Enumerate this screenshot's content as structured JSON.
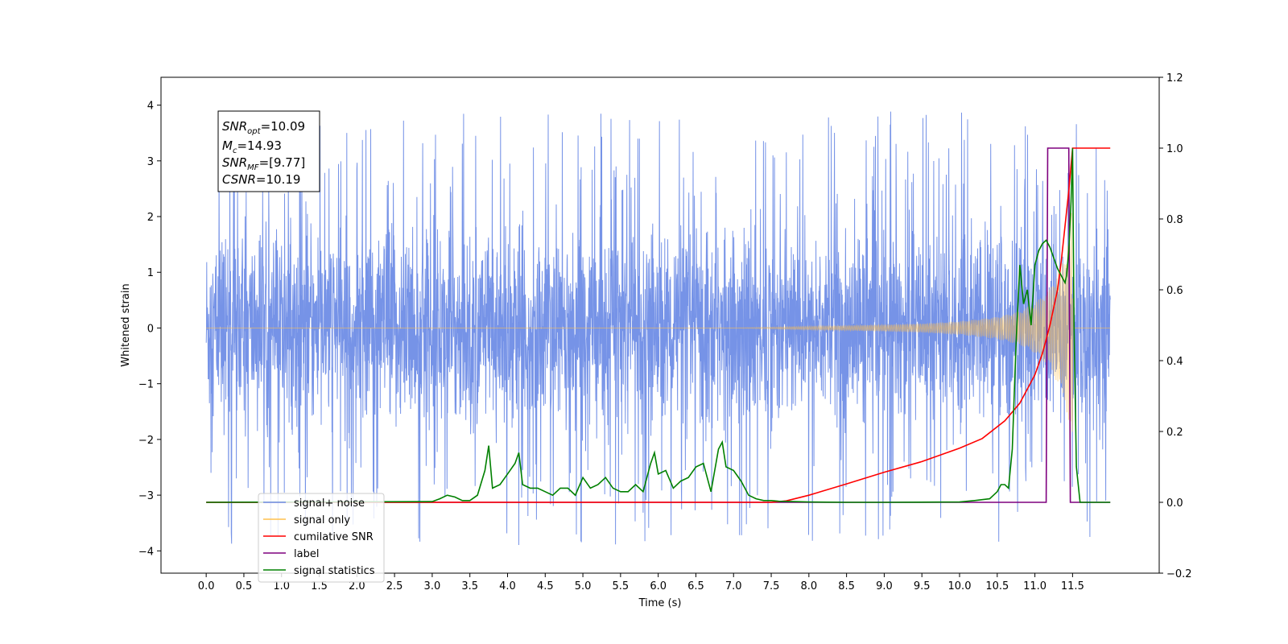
{
  "chart_data": {
    "type": "line",
    "xlabel": "Time (s)",
    "ylabel": "Whitened strain",
    "xlim": [
      -0.6,
      12.65
    ],
    "ylim": [
      -4.4,
      4.5
    ],
    "ylim_right": [
      -0.2,
      1.2
    ],
    "x_ticks": [
      0.0,
      0.5,
      1.0,
      1.5,
      2.0,
      2.5,
      3.0,
      3.5,
      4.0,
      4.5,
      5.0,
      5.5,
      6.0,
      6.5,
      7.0,
      7.5,
      8.0,
      8.5,
      9.0,
      9.5,
      10.0,
      10.5,
      11.0,
      11.5
    ],
    "x_tick_labels": [
      "0.0",
      "0.5",
      "1.0",
      "1.5",
      "2.0",
      "2.5",
      "3.0",
      "3.5",
      "4.0",
      "4.5",
      "5.0",
      "5.5",
      "6.0",
      "6.5",
      "7.0",
      "7.5",
      "8.0",
      "8.5",
      "9.0",
      "9.5",
      "10.0",
      "10.5",
      "11.0",
      "11.5"
    ],
    "y_ticks": [
      -4,
      -3,
      -2,
      -1,
      0,
      1,
      2,
      3,
      4
    ],
    "y_tick_labels": [
      "−4",
      "−3",
      "−2",
      "−1",
      "0",
      "1",
      "2",
      "3",
      "4"
    ],
    "y_right_ticks": [
      -0.2,
      0.0,
      0.2,
      0.4,
      0.6,
      0.8,
      1.0,
      1.2
    ],
    "y_right_tick_labels": [
      "−0.2",
      "0.0",
      "0.2",
      "0.4",
      "0.6",
      "0.8",
      "1.0",
      "1.2"
    ],
    "grid": false,
    "legend_position": "lower-left",
    "legend": [
      {
        "label": "signal+ noise",
        "color": "#6f8de6"
      },
      {
        "label": "signal only",
        "color": "#ffc04d"
      },
      {
        "label": "cumilative SNR",
        "color": "#ff0000"
      },
      {
        "label": "label",
        "color": "#7f007f"
      },
      {
        "label": "signal statistics",
        "color": "#008000"
      }
    ],
    "stats_box": {
      "snr_opt": "10.09",
      "mc": "14.93",
      "snr_mf": "[9.77]",
      "csnr": "10.19"
    },
    "series": [
      {
        "name": "signal+ noise",
        "axis": "left",
        "color": "#6f8de6",
        "x_range": [
          0.0,
          12.0
        ],
        "envelope_typical": 1.6,
        "peak_max": 4.1,
        "peak_min": -3.9
      },
      {
        "name": "signal only",
        "axis": "left",
        "color": "#ffc04d",
        "x": [
          0.0,
          7.0,
          8.0,
          9.0,
          9.5,
          10.0,
          10.5,
          10.8,
          11.0,
          11.2,
          11.4,
          11.5,
          11.51,
          12.0
        ],
        "amplitude": [
          0.0,
          0.0,
          0.03,
          0.06,
          0.08,
          0.12,
          0.2,
          0.3,
          0.45,
          0.7,
          1.3,
          2.2,
          0.0,
          0.0
        ]
      },
      {
        "name": "cumilative SNR",
        "axis": "right",
        "color": "#ff0000",
        "x": [
          0.0,
          7.5,
          7.7,
          8.0,
          8.5,
          9.0,
          9.5,
          10.0,
          10.3,
          10.6,
          10.8,
          11.0,
          11.1,
          11.2,
          11.3,
          11.35,
          11.4,
          11.45,
          11.5,
          12.0
        ],
        "y": [
          0.0,
          0.0,
          0.004,
          0.02,
          0.052,
          0.085,
          0.115,
          0.153,
          0.18,
          0.23,
          0.28,
          0.36,
          0.42,
          0.5,
          0.6,
          0.68,
          0.78,
          0.88,
          1.0,
          1.0
        ]
      },
      {
        "name": "label",
        "axis": "right",
        "color": "#7f007f",
        "x": [
          0.0,
          11.15,
          11.17,
          11.45,
          11.47,
          12.0
        ],
        "y": [
          0.0,
          0.0,
          1.0,
          1.0,
          0.0,
          0.0
        ]
      },
      {
        "name": "signal statistics",
        "axis": "right",
        "color": "#008000",
        "x": [
          0.0,
          3.0,
          3.1,
          3.2,
          3.3,
          3.4,
          3.5,
          3.6,
          3.7,
          3.75,
          3.8,
          3.9,
          4.0,
          4.1,
          4.15,
          4.2,
          4.3,
          4.4,
          4.5,
          4.6,
          4.7,
          4.8,
          4.9,
          5.0,
          5.1,
          5.2,
          5.3,
          5.4,
          5.5,
          5.6,
          5.7,
          5.8,
          5.9,
          5.95,
          6.0,
          6.1,
          6.2,
          6.3,
          6.4,
          6.5,
          6.6,
          6.7,
          6.8,
          6.85,
          6.9,
          7.0,
          7.1,
          7.2,
          7.3,
          7.4,
          7.5,
          7.6,
          7.8,
          8.0,
          8.5,
          9.0,
          10.0,
          10.2,
          10.4,
          10.5,
          10.55,
          10.6,
          10.65,
          10.7,
          10.75,
          10.8,
          10.85,
          10.9,
          10.95,
          11.0,
          11.05,
          11.1,
          11.15,
          11.2,
          11.25,
          11.3,
          11.35,
          11.4,
          11.42,
          11.45,
          11.48,
          11.5,
          11.52,
          11.55,
          11.6,
          12.0
        ],
        "y": [
          0.0,
          0.002,
          0.01,
          0.02,
          0.015,
          0.005,
          0.005,
          0.02,
          0.09,
          0.16,
          0.04,
          0.05,
          0.08,
          0.11,
          0.14,
          0.05,
          0.04,
          0.04,
          0.03,
          0.02,
          0.04,
          0.04,
          0.02,
          0.07,
          0.04,
          0.05,
          0.07,
          0.04,
          0.03,
          0.03,
          0.05,
          0.03,
          0.11,
          0.14,
          0.08,
          0.09,
          0.04,
          0.06,
          0.07,
          0.1,
          0.11,
          0.03,
          0.15,
          0.17,
          0.1,
          0.09,
          0.06,
          0.02,
          0.01,
          0.005,
          0.005,
          0.003,
          0.002,
          0.001,
          0.0,
          0.0,
          0.001,
          0.005,
          0.01,
          0.03,
          0.05,
          0.05,
          0.04,
          0.15,
          0.45,
          0.67,
          0.56,
          0.6,
          0.5,
          0.67,
          0.71,
          0.73,
          0.74,
          0.72,
          0.69,
          0.66,
          0.64,
          0.62,
          0.64,
          0.71,
          0.85,
          1.0,
          0.5,
          0.1,
          0.0,
          0.0
        ]
      }
    ]
  }
}
